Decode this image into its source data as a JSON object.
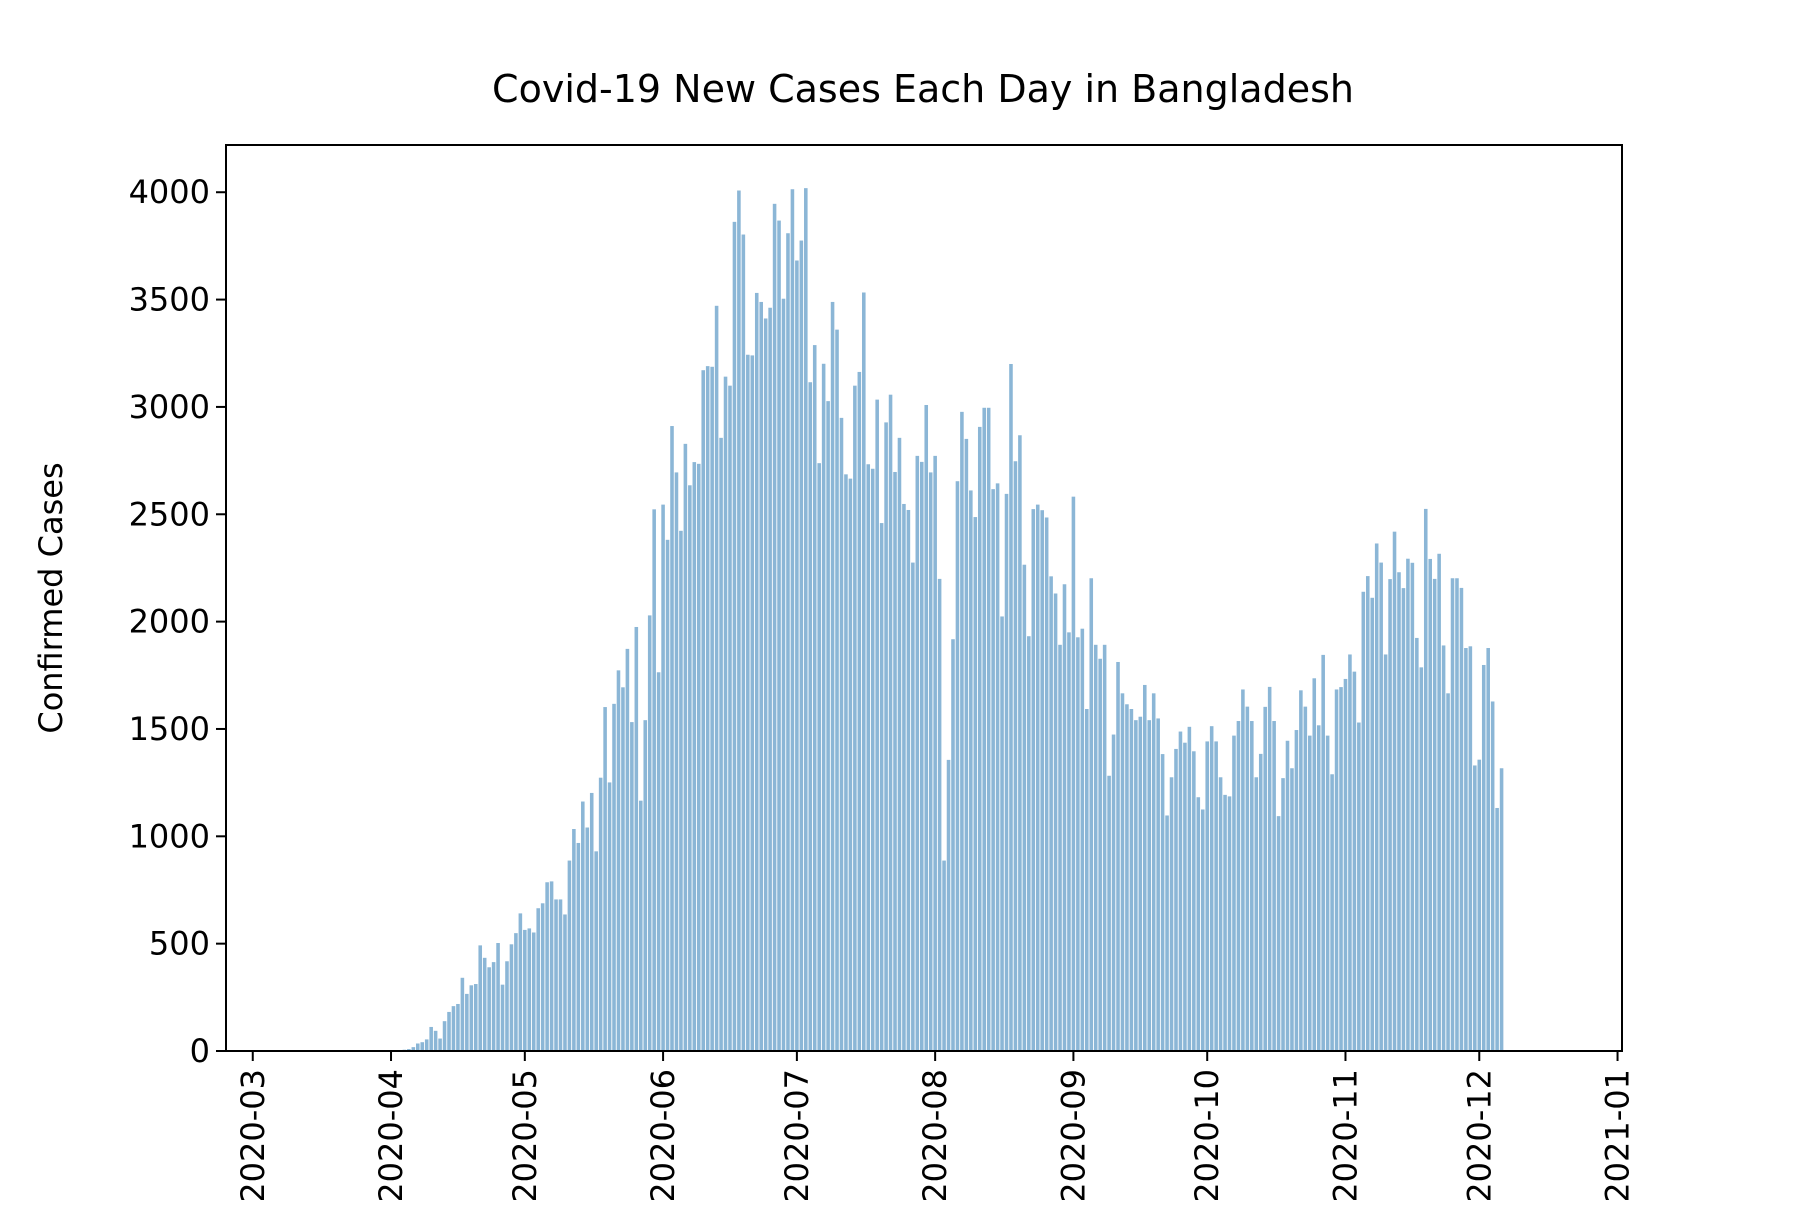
{
  "chart_data": {
    "type": "bar",
    "title": "Covid-19 New Cases Each Day in Bangladesh",
    "xlabel": "",
    "ylabel": "Confirmed Cases",
    "start_date": "2020-03-01",
    "xlim": [
      "2020-02-24",
      "2021-01-02"
    ],
    "ylim": [
      0,
      4220
    ],
    "yticks": [
      0,
      500,
      1000,
      1500,
      2000,
      2500,
      3000,
      3500,
      4000
    ],
    "xticks": [
      {
        "date": "2020-03-01",
        "label": "2020-03"
      },
      {
        "date": "2020-04-01",
        "label": "2020-04"
      },
      {
        "date": "2020-05-01",
        "label": "2020-05"
      },
      {
        "date": "2020-06-01",
        "label": "2020-06"
      },
      {
        "date": "2020-07-01",
        "label": "2020-07"
      },
      {
        "date": "2020-08-01",
        "label": "2020-08"
      },
      {
        "date": "2020-09-01",
        "label": "2020-09"
      },
      {
        "date": "2020-10-01",
        "label": "2020-10"
      },
      {
        "date": "2020-11-01",
        "label": "2020-11"
      },
      {
        "date": "2020-12-01",
        "label": "2020-12"
      },
      {
        "date": "2021-01-01",
        "label": "2021-01"
      }
    ],
    "grid": false,
    "bar_color": "#8bb6d6",
    "values": [
      0,
      0,
      0,
      0,
      0,
      0,
      0,
      0,
      0,
      0,
      0,
      0,
      0,
      0,
      0,
      0,
      0,
      0,
      0,
      0,
      0,
      0,
      0,
      0,
      0,
      0,
      0,
      0,
      0,
      0,
      0,
      0,
      2,
      3,
      6,
      9,
      18,
      35,
      41,
      54,
      112,
      94,
      58,
      139,
      182,
      209,
      219,
      341,
      266,
      306,
      312,
      492,
      434,
      390,
      414,
      503,
      309,
      418,
      497,
      549,
      641,
      564,
      571,
      552,
      665,
      688,
      786,
      790,
      706,
      706,
      636,
      887,
      1034,
      969,
      1162,
      1041,
      1202,
      930,
      1273,
      1602,
      1251,
      1617,
      1773,
      1694,
      1873,
      1532,
      1975,
      1166,
      1541,
      2029,
      2523,
      1764,
      2545,
      2381,
      2911,
      2695,
      2423,
      2828,
      2635,
      2743,
      2735,
      3171,
      3190,
      3187,
      3471,
      2856,
      3141,
      3099,
      3862,
      4008,
      3803,
      3243,
      3240,
      3531,
      3489,
      3412,
      3462,
      3946,
      3868,
      3504,
      3809,
      4014,
      3682,
      3775,
      4019,
      3115,
      3288,
      2738,
      3201,
      3027,
      3489,
      3360,
      2949,
      2686,
      2666,
      3099,
      3163,
      3533,
      2733,
      2712,
      3034,
      2459,
      2928,
      3057,
      2697,
      2856,
      2548,
      2520,
      2275,
      2772,
      2744,
      3009,
      2695,
      2772,
      2199,
      887,
      1356,
      1918,
      2654,
      2977,
      2851,
      2611,
      2487,
      2907,
      2996,
      2996,
      2617,
      2644,
      2024,
      2595,
      3200,
      2747,
      2868,
      2265,
      1932,
      2524,
      2545,
      2519,
      2485,
      2211,
      2131,
      1892,
      2174,
      1950,
      2582,
      1927,
      1967,
      1593,
      2202,
      1892,
      1827,
      1892,
      1282,
      1474,
      1812,
      1666,
      1615,
      1593,
      1541,
      1557,
      1705,
      1541,
      1666,
      1549,
      1383,
      1097,
      1275,
      1407,
      1488,
      1436,
      1510,
      1396,
      1182,
      1125,
      1442,
      1513,
      1442,
      1275,
      1193,
      1186,
      1469,
      1537,
      1684,
      1604,
      1537,
      1275,
      1384,
      1603,
      1696,
      1537,
      1094,
      1271,
      1445,
      1317,
      1495,
      1680,
      1604,
      1469,
      1736,
      1517,
      1845,
      1469,
      1289,
      1684,
      1695,
      1733,
      1847,
      1767,
      1530,
      2139,
      2212,
      2111,
      2364,
      2275,
      1847,
      2198,
      2419,
      2230,
      2156,
      2293,
      2274,
      1924,
      1787,
      2525,
      2292,
      2199,
      2316,
      1889,
      1666,
      2202,
      2202,
      2157,
      1877,
      1885,
      1330,
      1357,
      1798,
      1877,
      1628,
      1132,
      1317
    ]
  }
}
